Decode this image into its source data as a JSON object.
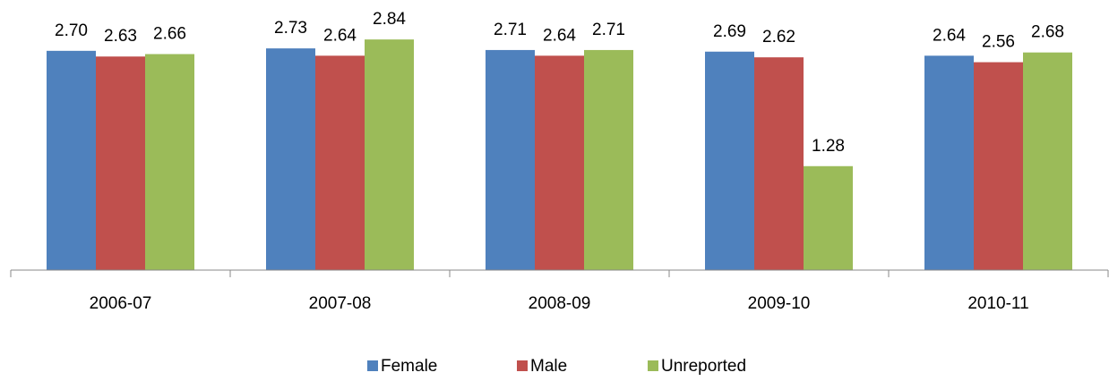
{
  "chart_data": {
    "type": "bar",
    "categories": [
      "2006-07",
      "2007-08",
      "2008-09",
      "2009-10",
      "2010-11"
    ],
    "series": [
      {
        "name": "Female",
        "color": "#4f81bd",
        "values": [
          2.7,
          2.73,
          2.71,
          2.69,
          2.64
        ],
        "value_labels": [
          "2.70",
          "2.73",
          "2.71",
          "2.69",
          "2.64"
        ]
      },
      {
        "name": "Male",
        "color": "#c0504d",
        "values": [
          2.63,
          2.64,
          2.64,
          2.62,
          2.56
        ],
        "value_labels": [
          "2.63",
          "2.64",
          "2.64",
          "2.62",
          "2.56"
        ]
      },
      {
        "name": "Unreported",
        "color": "#9bbb59",
        "values": [
          2.66,
          2.84,
          2.71,
          1.28,
          2.68
        ],
        "value_labels": [
          "2.66",
          "2.84",
          "2.71",
          "1.28",
          "2.68"
        ]
      }
    ],
    "ylim": [
      0,
      3.1
    ],
    "legend": "bottom"
  }
}
